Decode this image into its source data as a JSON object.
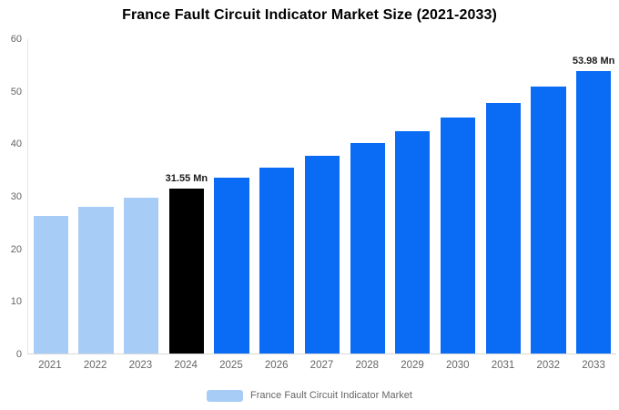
{
  "title": "France Fault Circuit Indicator Market Size (2021-2033)",
  "colors": {
    "historical": "#a7cdf6",
    "highlight": "#000000",
    "forecast": "#0a6cf5",
    "axis_label": "#666666",
    "data_label": "#1a1a1a"
  },
  "legend": {
    "label": "France Fault Circuit Indicator Market",
    "swatch_color": "#a7cdf6"
  },
  "y_axis": {
    "ticks": [
      0,
      10,
      20,
      30,
      40,
      50,
      60
    ],
    "max": 60
  },
  "chart_data": {
    "type": "bar",
    "title": "France Fault Circuit Indicator Market Size (2021-2033)",
    "categories": [
      "2021",
      "2022",
      "2023",
      "2024",
      "2025",
      "2026",
      "2027",
      "2028",
      "2029",
      "2030",
      "2031",
      "2032",
      "2033"
    ],
    "values": [
      26.3,
      28.0,
      29.7,
      31.55,
      33.5,
      35.5,
      37.7,
      40.1,
      42.5,
      45.1,
      47.9,
      50.9,
      53.98
    ],
    "bar_roles": [
      "historical",
      "historical",
      "historical",
      "highlight",
      "forecast",
      "forecast",
      "forecast",
      "forecast",
      "forecast",
      "forecast",
      "forecast",
      "forecast",
      "forecast"
    ],
    "data_labels": [
      "",
      "",
      "",
      "31.55 Mn",
      "",
      "",
      "",
      "",
      "",
      "",
      "",
      "",
      "53.98 Mn"
    ],
    "xlabel": "",
    "ylabel": "",
    "ylim": [
      0,
      60
    ],
    "grid": false,
    "legend_position": "bottom",
    "unit": "Mn"
  }
}
